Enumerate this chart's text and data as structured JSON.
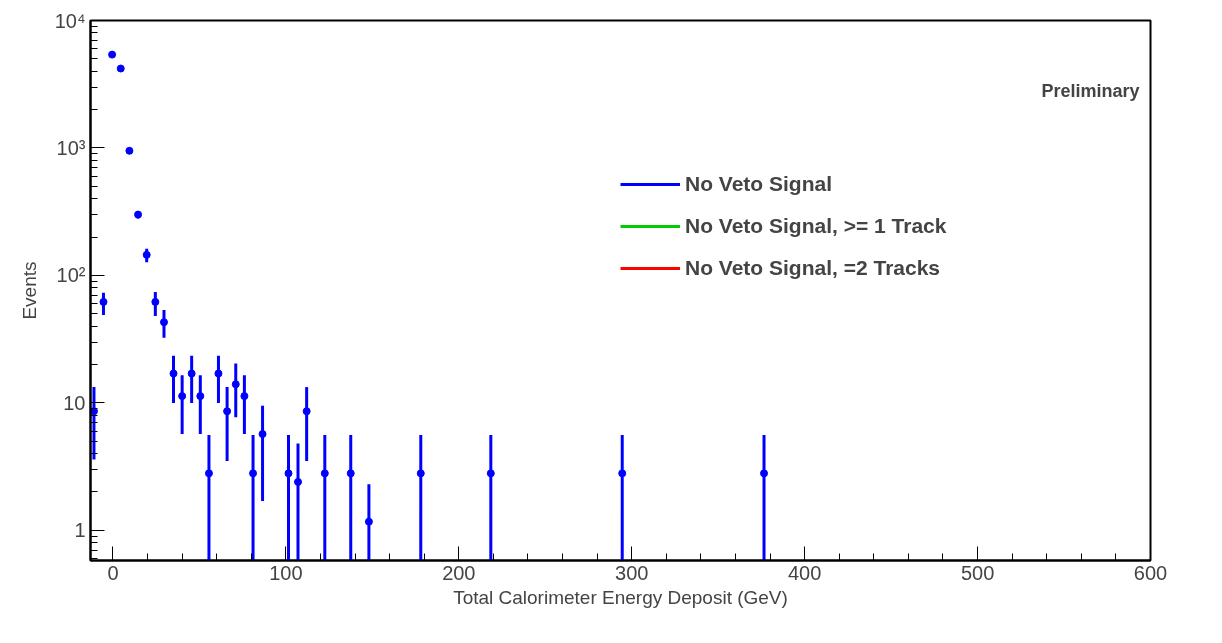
{
  "chart_data": {
    "type": "scatter",
    "xlabel": "Total Calorimeter Energy Deposit (GeV)",
    "ylabel": "Events",
    "log": true,
    "xlim": [
      -13,
      600
    ],
    "xticks": [
      0,
      100,
      200,
      300,
      400,
      500,
      600
    ],
    "ylim": [
      0.58,
      10000
    ],
    "yticks": [
      1,
      10,
      {
        "value": 100,
        "label": "10²"
      },
      {
        "value": 1000,
        "label": "10³"
      },
      {
        "value": 10000,
        "label": "10⁴"
      }
    ],
    "grid": false,
    "legend": "top right",
    "marker": "circle",
    "annotations": [
      "Preliminary"
    ],
    "series": [
      {
        "name": "No Veto Signal",
        "color": "#0000ff",
        "x": [
          -11,
          -5.5,
          -0.5,
          4.5,
          9.5,
          14.5,
          19.5,
          24.5,
          29.5,
          35,
          40,
          45.5,
          50.5,
          55.5,
          61,
          66,
          71,
          76,
          81,
          86.5,
          101.5,
          107,
          112,
          122.5,
          137.5,
          148,
          178,
          218.5,
          294.5,
          376.5
        ],
        "values": [
          8.6,
          62,
          5400,
          4200,
          950,
          300,
          145,
          62,
          43,
          17,
          11.3,
          17,
          11.3,
          2.8,
          17,
          8.6,
          14,
          11.3,
          2.8,
          5.7,
          2.8,
          2.4,
          8.6,
          2.8,
          2.8,
          1.17,
          2.8,
          2.8,
          2.8,
          2.8
        ],
        "errors": [
          [
            3.6,
            13.3
          ],
          [
            49,
            73
          ],
          [
            5300,
            5500
          ],
          [
            4100,
            4300
          ],
          [
            920,
            980
          ],
          [
            280,
            320
          ],
          [
            127,
            162
          ],
          [
            48,
            74
          ],
          [
            32.5,
            53.5
          ],
          [
            10,
            23.4
          ],
          [
            5.7,
            16.5
          ],
          [
            10,
            23.4
          ],
          [
            5.7,
            16.5
          ],
          [
            0.58,
            5.6
          ],
          [
            10,
            23.4
          ],
          [
            3.5,
            13.3
          ],
          [
            7.7,
            20.4
          ],
          [
            5.7,
            16.5
          ],
          [
            0.58,
            5.6
          ],
          [
            1.7,
            9.5
          ],
          [
            0.58,
            5.6
          ],
          [
            0.58,
            4.8
          ],
          [
            3.5,
            13.3
          ],
          [
            0.58,
            5.6
          ],
          [
            0.58,
            5.6
          ],
          [
            0.58,
            2.3
          ],
          [
            0.58,
            5.6
          ],
          [
            0.58,
            5.6
          ],
          [
            0.58,
            5.6
          ],
          [
            0.58,
            5.6
          ]
        ]
      },
      {
        "name": "No Veto Signal, >= 1 Track",
        "color": "#00cc00"
      },
      {
        "name": "No Veto Signal, =2 Tracks",
        "color": "#ff0000"
      }
    ]
  }
}
